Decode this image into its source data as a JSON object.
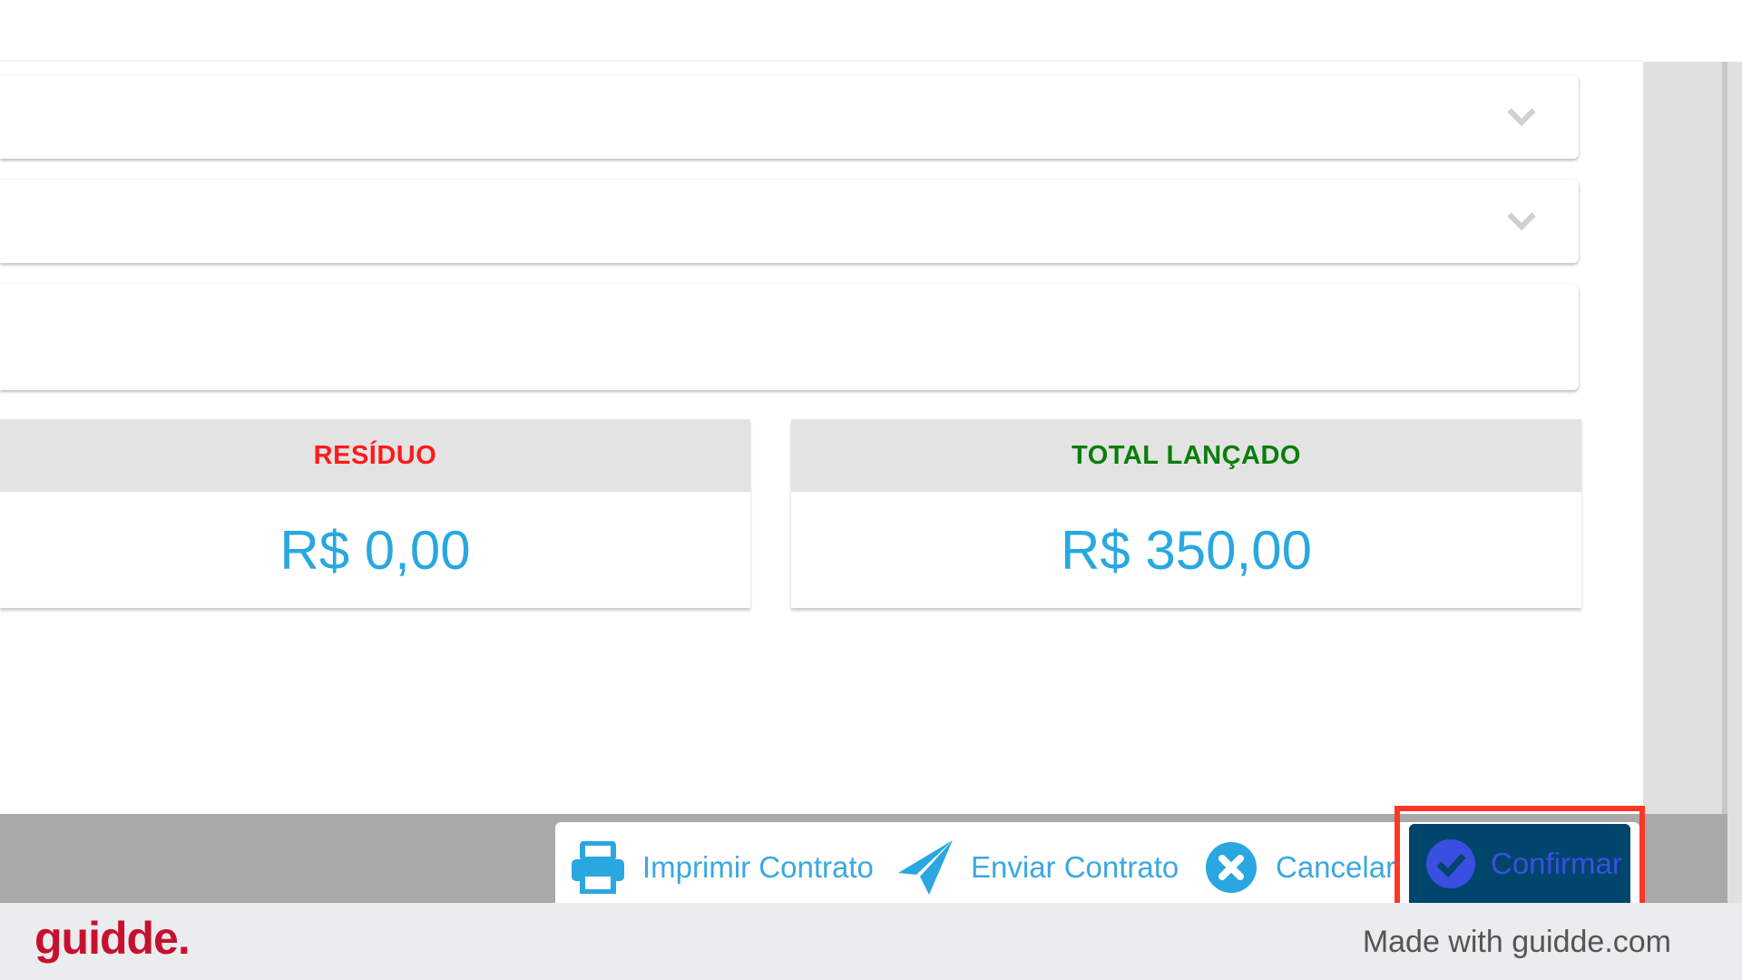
{
  "summary": {
    "residuo": {
      "label": "RESÍDUO",
      "value": "R$ 0,00",
      "label_color": "#ff1a1a"
    },
    "total": {
      "label": "TOTAL LANÇADO",
      "value": "R$ 350,00",
      "label_color": "#0a7d0a"
    }
  },
  "actions": {
    "print": "Imprimir Contrato",
    "send": "Enviar Contrato",
    "cancel": "Cancelar",
    "confirm": "Confirmar"
  },
  "colors": {
    "accent": "#29a8e0",
    "confirm_bg": "#00456b",
    "highlight": "#ff3526",
    "brand": "#c8102e"
  },
  "footer": {
    "logo": "guidde.",
    "credit": "Made with guidde.com"
  }
}
